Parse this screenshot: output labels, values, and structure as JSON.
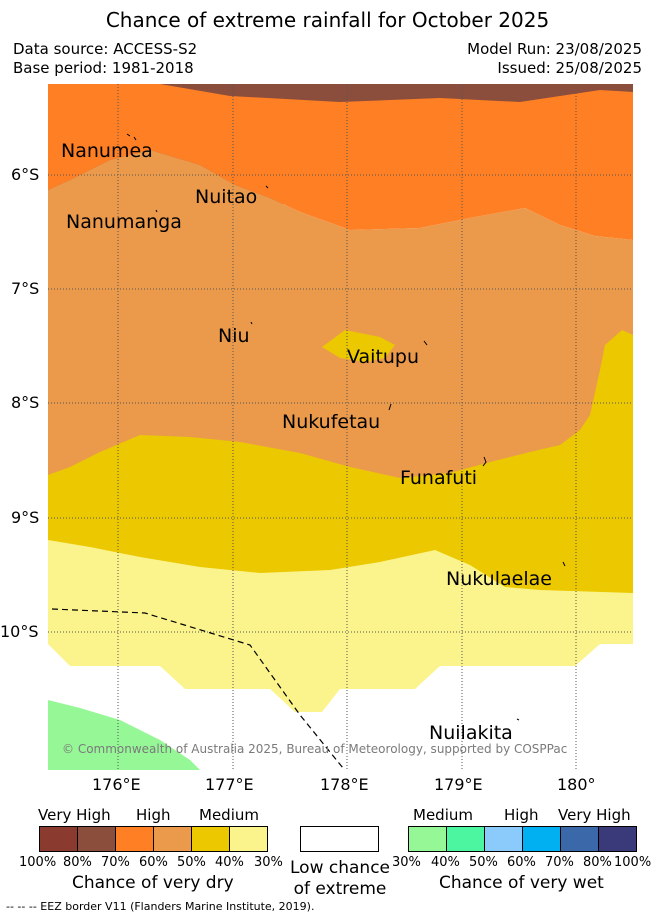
{
  "title": "Chance of extreme rainfall for October 2025",
  "data_source": "Data source: ACCESS-S2",
  "base_period": "Base period: 1981-2018",
  "model_run": "Model Run: 23/08/2025",
  "issued": "Issued: 25/08/2025",
  "copyright": "© Commonwealth of Australia 2025, Bureau of Meteorology, supported by COSPPac",
  "lat_labels": [
    "6°S",
    "7°S",
    "8°S",
    "9°S",
    "10°S"
  ],
  "lon_labels": [
    "176°E",
    "177°E",
    "178°E",
    "179°E",
    "180°"
  ],
  "places": [
    "Nanumea",
    "Nuitao",
    "Nanumanga",
    "Niu",
    "Vaitupu",
    "Nukufetau",
    "Funafuti",
    "Nukulaelae",
    "Nuilakita"
  ],
  "legend": {
    "dry": {
      "categories": [
        "Very High",
        "High",
        "Medium"
      ],
      "colors": [
        "#8b3a2f",
        "#8b4e3c",
        "#ff7f24",
        "#eb9a4c",
        "#ebc800",
        "#fbf48c"
      ],
      "percents": [
        "100%",
        "80%",
        "70%",
        "60%",
        "50%",
        "40%",
        "30%"
      ],
      "caption": "Chance of very dry"
    },
    "low": {
      "caption_line1": "Low chance",
      "caption_line2": "of extreme",
      "color": "#ffffff"
    },
    "wet": {
      "categories": [
        "Medium",
        "High",
        "Very High"
      ],
      "colors": [
        "#96f796",
        "#4cf5a0",
        "#8acbfb",
        "#00b0f0",
        "#3b68a8",
        "#3a3a7a"
      ],
      "percents": [
        "30%",
        "40%",
        "50%",
        "60%",
        "70%",
        "80%",
        "100%"
      ],
      "caption": "Chance of very wet"
    }
  },
  "eez_note": "-- -- -- EEZ border V11 (Flanders Marine Institute, 2019)."
}
